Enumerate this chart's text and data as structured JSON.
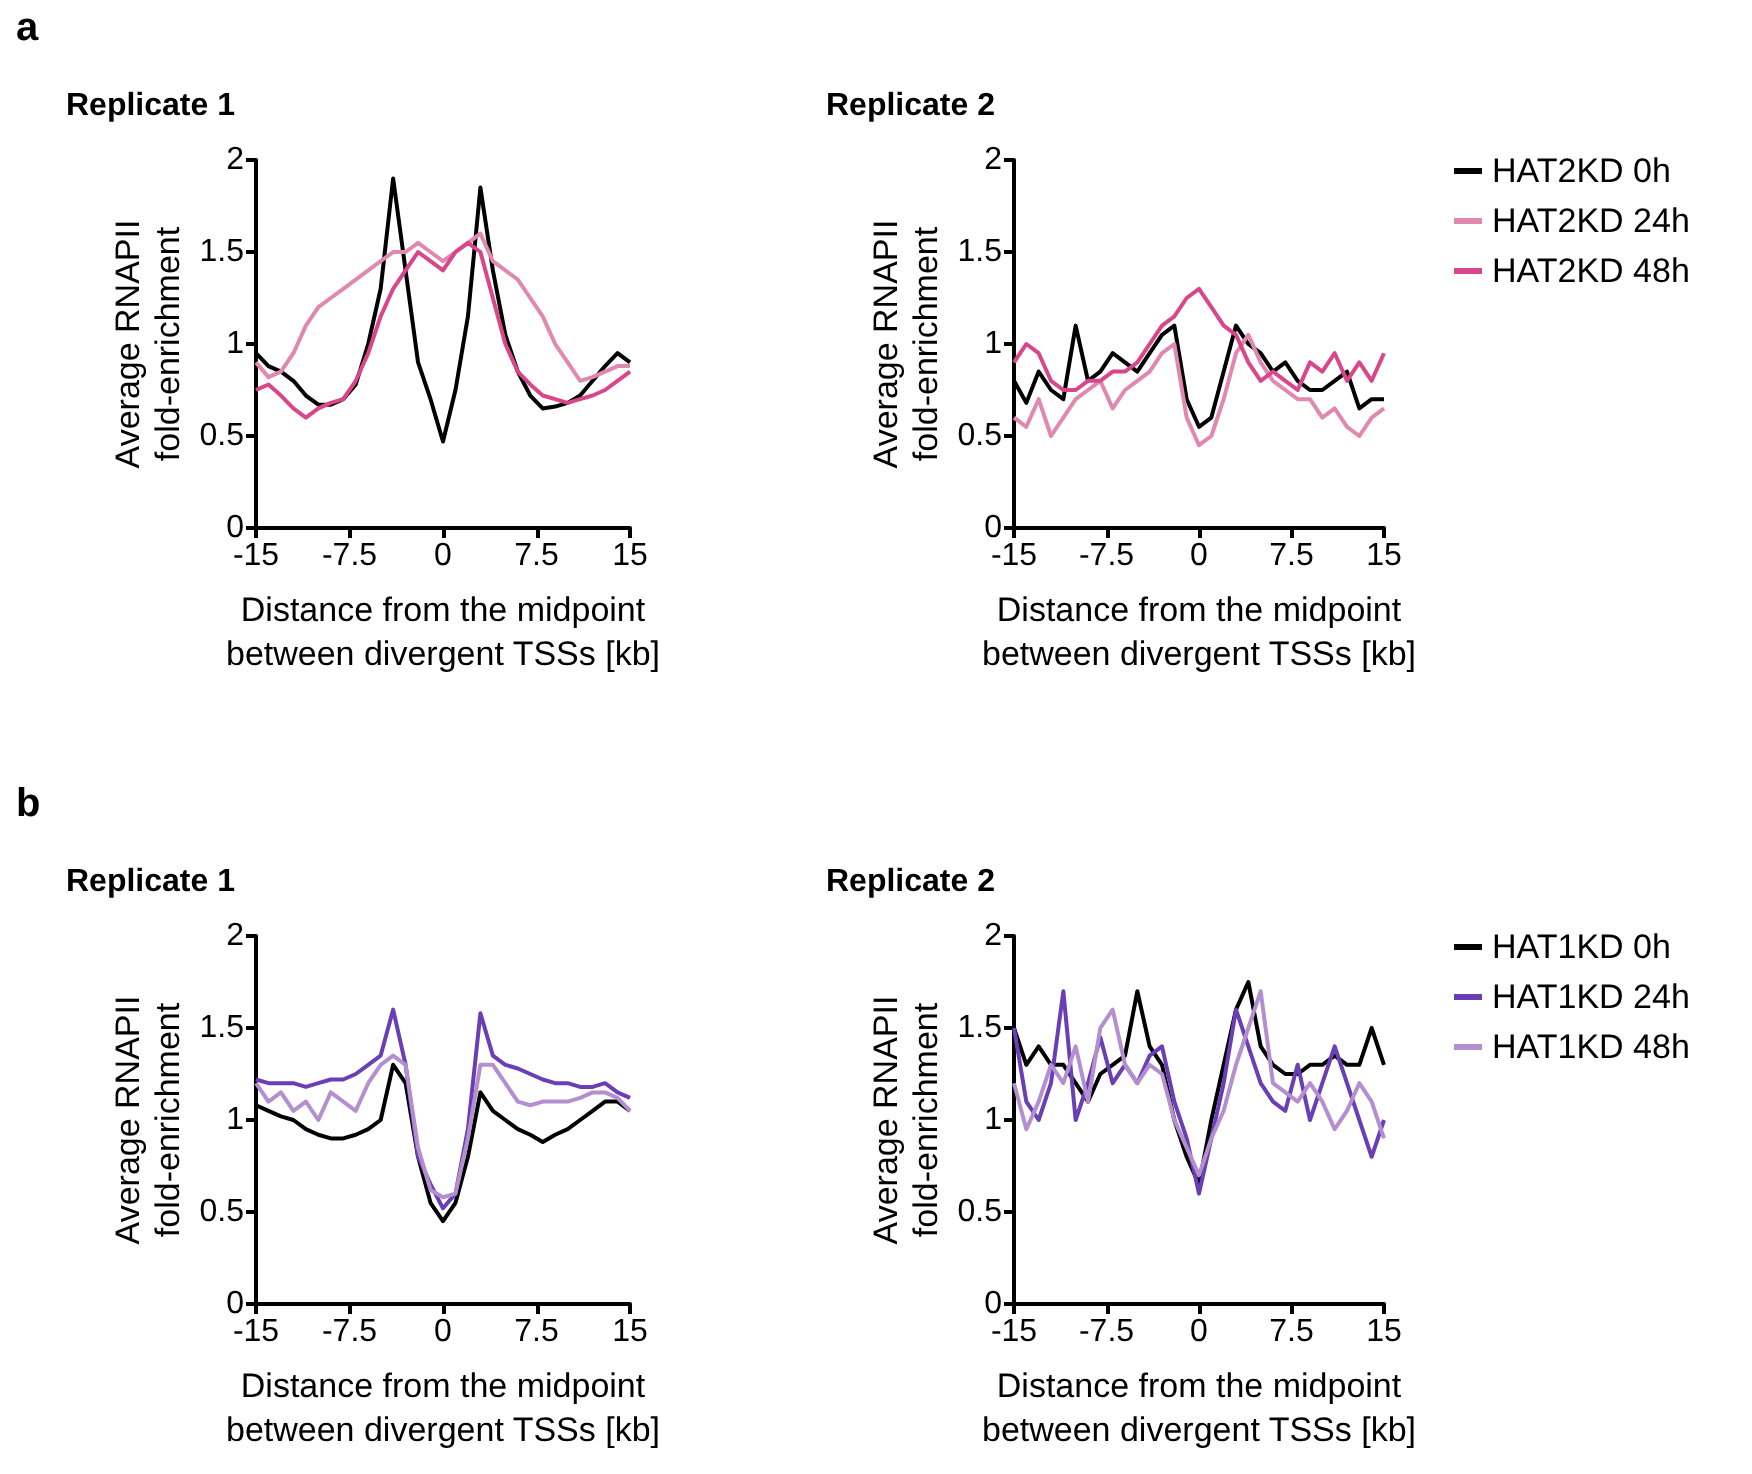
{
  "chart_data": [
    {
      "type": "line",
      "title": "Replicate 1",
      "annotations": [
        "a"
      ],
      "xlabel": "Distance from the midpoint\nbetween divergent TSSs [kb]",
      "ylabel": "Average RNAPII\nfold-enrichment",
      "marker": "none",
      "legend": false,
      "xlim": [
        -15,
        15
      ],
      "xticks": [
        -15,
        -7.5,
        0,
        7.5,
        15
      ],
      "ylim": [
        0,
        2
      ],
      "yticks": [
        0,
        0.5,
        1,
        1.5,
        2
      ],
      "x": [
        -15,
        -14,
        -13,
        -12,
        -11,
        -10,
        -9,
        -8,
        -7,
        -6,
        -5,
        -4,
        -3,
        -2,
        -1,
        0,
        1,
        2,
        3,
        4,
        5,
        6,
        7,
        8,
        9,
        10,
        11,
        12,
        13,
        14,
        15
      ],
      "series": [
        {
          "color": "#000000",
          "values": [
            0.95,
            0.88,
            0.85,
            0.8,
            0.72,
            0.67,
            0.67,
            0.7,
            0.78,
            1.0,
            1.3,
            1.9,
            1.4,
            0.9,
            0.7,
            0.47,
            0.75,
            1.15,
            1.85,
            1.4,
            1.05,
            0.85,
            0.72,
            0.65,
            0.66,
            0.68,
            0.72,
            0.8,
            0.88,
            0.95,
            0.9
          ]
        },
        {
          "color": "#e088b0",
          "values": [
            0.9,
            0.82,
            0.85,
            0.95,
            1.1,
            1.2,
            1.25,
            1.3,
            1.35,
            1.4,
            1.45,
            1.5,
            1.5,
            1.55,
            1.5,
            1.45,
            1.5,
            1.55,
            1.6,
            1.45,
            1.4,
            1.35,
            1.25,
            1.15,
            1.0,
            0.9,
            0.8,
            0.82,
            0.85,
            0.88,
            0.88
          ]
        },
        {
          "color": "#d9468a",
          "values": [
            0.75,
            0.78,
            0.72,
            0.65,
            0.6,
            0.65,
            0.68,
            0.7,
            0.8,
            0.95,
            1.15,
            1.3,
            1.4,
            1.5,
            1.45,
            1.4,
            1.5,
            1.55,
            1.5,
            1.25,
            1.0,
            0.85,
            0.78,
            0.72,
            0.7,
            0.68,
            0.7,
            0.72,
            0.75,
            0.8,
            0.85
          ]
        }
      ]
    },
    {
      "type": "line",
      "title": "Replicate 2",
      "xlabel": "Distance from the midpoint\nbetween divergent TSSs [kb]",
      "ylabel": "Average RNAPII\nfold-enrichment",
      "marker": "none",
      "legend": "right",
      "xlim": [
        -15,
        15
      ],
      "xticks": [
        -15,
        -7.5,
        0,
        7.5,
        15
      ],
      "ylim": [
        0,
        2
      ],
      "yticks": [
        0,
        0.5,
        1,
        1.5,
        2
      ],
      "x": [
        -15,
        -14,
        -13,
        -12,
        -11,
        -10,
        -9,
        -8,
        -7,
        -6,
        -5,
        -4,
        -3,
        -2,
        -1,
        0,
        1,
        2,
        3,
        4,
        5,
        6,
        7,
        8,
        9,
        10,
        11,
        12,
        13,
        14,
        15
      ],
      "series": [
        {
          "name": "HAT2KD 0h",
          "color": "#000000",
          "values": [
            0.8,
            0.68,
            0.85,
            0.75,
            0.7,
            1.1,
            0.8,
            0.85,
            0.95,
            0.9,
            0.85,
            0.95,
            1.05,
            1.1,
            0.7,
            0.55,
            0.6,
            0.85,
            1.1,
            1.0,
            0.95,
            0.85,
            0.9,
            0.8,
            0.75,
            0.75,
            0.8,
            0.85,
            0.65,
            0.7,
            0.7
          ]
        },
        {
          "name": "HAT2KD 24h",
          "color": "#e088b0",
          "values": [
            0.6,
            0.55,
            0.7,
            0.5,
            0.6,
            0.7,
            0.75,
            0.8,
            0.65,
            0.75,
            0.8,
            0.85,
            0.95,
            1.0,
            0.6,
            0.45,
            0.5,
            0.7,
            0.95,
            1.05,
            0.9,
            0.8,
            0.75,
            0.7,
            0.7,
            0.6,
            0.65,
            0.55,
            0.5,
            0.6,
            0.65
          ]
        },
        {
          "name": "HAT2KD 48h",
          "color": "#d9468a",
          "values": [
            0.9,
            1.0,
            0.95,
            0.8,
            0.75,
            0.75,
            0.8,
            0.8,
            0.85,
            0.85,
            0.9,
            1.0,
            1.1,
            1.15,
            1.25,
            1.3,
            1.2,
            1.1,
            1.05,
            0.9,
            0.8,
            0.85,
            0.8,
            0.75,
            0.9,
            0.85,
            0.95,
            0.8,
            0.9,
            0.8,
            0.95
          ]
        }
      ]
    },
    {
      "type": "line",
      "title": "Replicate 1",
      "annotations": [
        "b"
      ],
      "xlabel": "Distance from the midpoint\nbetween divergent TSSs [kb]",
      "ylabel": "Average RNAPII\nfold-enrichment",
      "marker": "none",
      "legend": false,
      "xlim": [
        -15,
        15
      ],
      "xticks": [
        -15,
        -7.5,
        0,
        7.5,
        15
      ],
      "ylim": [
        0,
        2
      ],
      "yticks": [
        0,
        0.5,
        1,
        1.5,
        2
      ],
      "x": [
        -15,
        -14,
        -13,
        -12,
        -11,
        -10,
        -9,
        -8,
        -7,
        -6,
        -5,
        -4,
        -3,
        -2,
        -1,
        0,
        1,
        2,
        3,
        4,
        5,
        6,
        7,
        8,
        9,
        10,
        11,
        12,
        13,
        14,
        15
      ],
      "series": [
        {
          "color": "#000000",
          "values": [
            1.08,
            1.05,
            1.02,
            1.0,
            0.95,
            0.92,
            0.9,
            0.9,
            0.92,
            0.95,
            1.0,
            1.3,
            1.2,
            0.8,
            0.55,
            0.45,
            0.55,
            0.8,
            1.15,
            1.05,
            1.0,
            0.95,
            0.92,
            0.88,
            0.92,
            0.95,
            1.0,
            1.05,
            1.1,
            1.1,
            1.05
          ]
        },
        {
          "color": "#6a3fb5",
          "values": [
            1.22,
            1.2,
            1.2,
            1.2,
            1.18,
            1.2,
            1.22,
            1.22,
            1.25,
            1.3,
            1.35,
            1.6,
            1.3,
            0.8,
            0.65,
            0.52,
            0.6,
            0.95,
            1.58,
            1.35,
            1.3,
            1.28,
            1.25,
            1.22,
            1.2,
            1.2,
            1.18,
            1.18,
            1.2,
            1.15,
            1.12
          ]
        },
        {
          "color": "#b48fcf",
          "values": [
            1.2,
            1.1,
            1.15,
            1.05,
            1.1,
            1.0,
            1.15,
            1.1,
            1.05,
            1.2,
            1.3,
            1.35,
            1.3,
            0.85,
            0.62,
            0.58,
            0.6,
            0.9,
            1.3,
            1.3,
            1.2,
            1.1,
            1.08,
            1.1,
            1.1,
            1.1,
            1.12,
            1.15,
            1.15,
            1.12,
            1.05
          ]
        }
      ]
    },
    {
      "type": "line",
      "title": "Replicate 2",
      "xlabel": "Distance from the midpoint\nbetween divergent TSSs [kb]",
      "ylabel": "Average RNAPII\nfold-enrichment",
      "marker": "none",
      "legend": "right",
      "xlim": [
        -15,
        15
      ],
      "xticks": [
        -15,
        -7.5,
        0,
        7.5,
        15
      ],
      "ylim": [
        0,
        2
      ],
      "yticks": [
        0,
        0.5,
        1,
        1.5,
        2
      ],
      "x": [
        -15,
        -14,
        -13,
        -12,
        -11,
        -10,
        -9,
        -8,
        -7,
        -6,
        -5,
        -4,
        -3,
        -2,
        -1,
        0,
        1,
        2,
        3,
        4,
        5,
        6,
        7,
        8,
        9,
        10,
        11,
        12,
        13,
        14,
        15
      ],
      "series": [
        {
          "name": "HAT1KD 0h",
          "color": "#000000",
          "values": [
            1.5,
            1.3,
            1.4,
            1.3,
            1.3,
            1.2,
            1.1,
            1.25,
            1.3,
            1.35,
            1.7,
            1.4,
            1.3,
            1.0,
            0.8,
            0.65,
            1.0,
            1.3,
            1.6,
            1.75,
            1.4,
            1.3,
            1.25,
            1.25,
            1.3,
            1.3,
            1.35,
            1.3,
            1.3,
            1.5,
            1.3
          ]
        },
        {
          "name": "HAT1KD 24h",
          "color": "#6a3fb5",
          "values": [
            1.5,
            1.1,
            1.0,
            1.2,
            1.7,
            1.0,
            1.2,
            1.45,
            1.2,
            1.3,
            1.2,
            1.35,
            1.4,
            1.1,
            0.9,
            0.6,
            0.9,
            1.2,
            1.6,
            1.4,
            1.2,
            1.1,
            1.05,
            1.3,
            1.0,
            1.2,
            1.4,
            1.2,
            1.0,
            0.8,
            1.0
          ]
        },
        {
          "name": "HAT1KD 48h",
          "color": "#b48fcf",
          "values": [
            1.2,
            0.95,
            1.1,
            1.3,
            1.2,
            1.4,
            1.1,
            1.5,
            1.6,
            1.3,
            1.2,
            1.3,
            1.25,
            1.0,
            0.85,
            0.7,
            0.9,
            1.05,
            1.3,
            1.5,
            1.7,
            1.2,
            1.15,
            1.1,
            1.2,
            1.1,
            0.95,
            1.05,
            1.2,
            1.1,
            0.9
          ]
        }
      ]
    }
  ]
}
